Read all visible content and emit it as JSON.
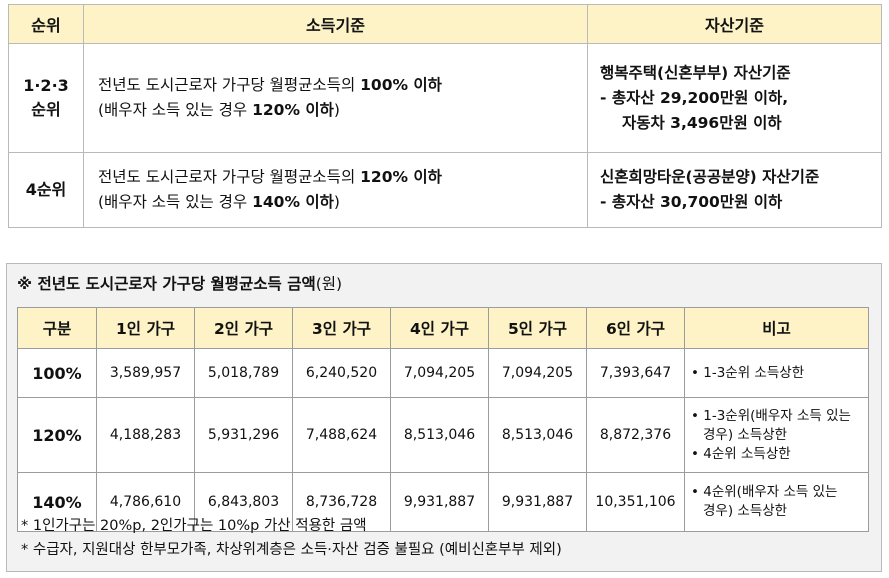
{
  "criteria_table": {
    "headers": [
      "순위",
      "소득기준",
      "자산기준"
    ],
    "rows": [
      {
        "rank_lines": [
          "1·2·3",
          "순위"
        ],
        "income_line1_prefix": "전년도 도시근로자 가구당 월평균소득의 ",
        "income_line1_bold": "100% 이하",
        "income_line2_prefix": "(배우자 소득 있는 경우 ",
        "income_line2_bold": "120% 이하",
        "income_line2_suffix": ")",
        "asset_lines": [
          "행복주택(신혼부부) 자산기준",
          "- 총자산 29,200만원 이하,",
          "자동차 3,496만원 이하"
        ]
      },
      {
        "rank_lines": [
          "4순위"
        ],
        "income_line1_prefix": "전년도 도시근로자 가구당 월평균소득의 ",
        "income_line1_bold": "120% 이하",
        "income_line2_prefix": "(배우자 소득 있는 경우 ",
        "income_line2_bold": "140% 이하",
        "income_line2_suffix": ")",
        "asset_lines": [
          "신혼희망타운(공공분양) 자산기준",
          "- 총자산 30,700만원 이하"
        ]
      }
    ]
  },
  "income_box": {
    "title": "※ 전년도 도시근로자 가구당 월평균소득 금액",
    "title_unit": "(원)",
    "headers": [
      "구분",
      "1인 가구",
      "2인 가구",
      "3인 가구",
      "4인 가구",
      "5인 가구",
      "6인 가구",
      "비고"
    ],
    "rows": [
      {
        "level": "100%",
        "values": [
          "3,589,957",
          "5,018,789",
          "6,240,520",
          "7,094,205",
          "7,094,205",
          "7,393,647"
        ],
        "notes": [
          [
            "• 1-3순위 소득상한"
          ]
        ]
      },
      {
        "level": "120%",
        "values": [
          "4,188,283",
          "5,931,296",
          "7,488,624",
          "8,513,046",
          "8,513,046",
          "8,872,376"
        ],
        "notes": [
          [
            "• 1-3순위(배우자 소득 있는",
            "경우) 소득상한"
          ],
          [
            "• 4순위 소득상한"
          ]
        ]
      },
      {
        "level": "140%",
        "values": [
          "4,786,610",
          "6,843,803",
          "8,736,728",
          "9,931,887",
          "9,931,887",
          "10,351,106"
        ],
        "notes": [
          [
            "• 4순위(배우자 소득 있는",
            "경우) 소득상한"
          ]
        ]
      }
    ],
    "footnotes": [
      "* 1인가구는 20%p, 2인가구는 10%p 가산 적용한 금액",
      "* 수급자, 지원대상 한부모가족, 차상위계층은 소득·자산 검증 불필요 (예비신혼부부 제외)"
    ]
  }
}
